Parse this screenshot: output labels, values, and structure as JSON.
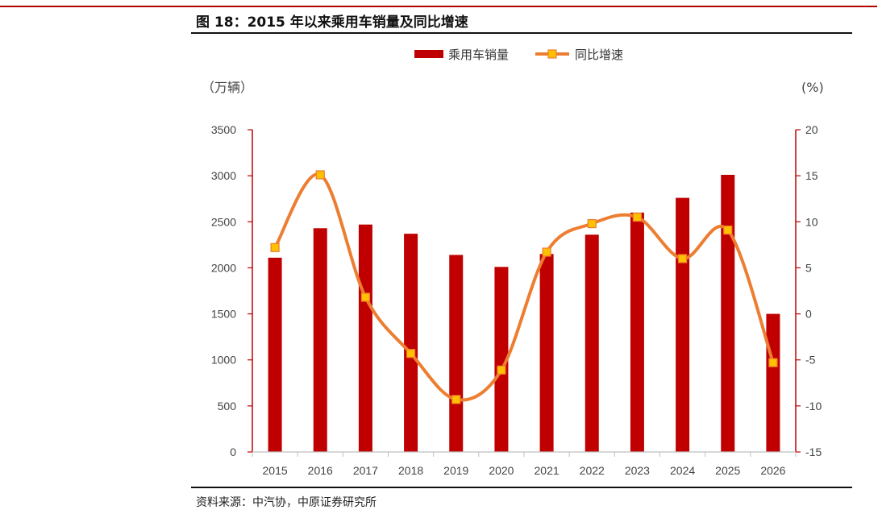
{
  "header": {
    "title": "图 18：2015 年以来乘用车销量及同比增速"
  },
  "footer": {
    "source": "资料来源：中汽协，中原证券研究所"
  },
  "colors": {
    "bar": "#c00000",
    "line": "#ed7d31",
    "marker_fill": "#ffc000",
    "right_axis": "#c00000",
    "left_axis": "#c00000"
  },
  "chart_data": {
    "type": "bar",
    "categories": [
      "2015",
      "2016",
      "2017",
      "2018",
      "2019",
      "2020",
      "2021",
      "2022",
      "2023",
      "2024",
      "2025",
      "2026"
    ],
    "series": [
      {
        "name": "乘用车销量",
        "type": "bar",
        "axis": "left",
        "values": [
          2110,
          2430,
          2470,
          2370,
          2140,
          2010,
          2150,
          2360,
          2600,
          2760,
          3010,
          1500
        ]
      },
      {
        "name": "同比增速",
        "type": "line",
        "axis": "right",
        "values": [
          7.2,
          15.1,
          1.8,
          -4.3,
          -9.3,
          -6.1,
          6.7,
          9.8,
          10.5,
          6.0,
          9.1,
          -5.3
        ]
      }
    ],
    "left_axis": {
      "unit": "（万辆）",
      "ylim": [
        0,
        3500
      ],
      "ticks": [
        "0",
        "500",
        "1000",
        "1500",
        "2000",
        "2500",
        "3000",
        "3500"
      ]
    },
    "right_axis": {
      "unit": "(%)",
      "ylim": [
        -15,
        20
      ],
      "ticks": [
        "-15",
        "-10",
        "-5",
        "0",
        "5",
        "10",
        "15",
        "20"
      ]
    },
    "legend_position": "top-center",
    "grid": false
  }
}
